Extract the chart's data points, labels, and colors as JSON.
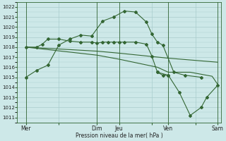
{
  "xlabel": "Pression niveau de la mer( hPa )",
  "background_color": "#cde8e8",
  "grid_color": "#a8cccc",
  "line_color": "#336633",
  "ylim": [
    1010.5,
    1022.5
  ],
  "yticks": [
    1011,
    1012,
    1013,
    1014,
    1015,
    1016,
    1017,
    1018,
    1019,
    1020,
    1021,
    1022
  ],
  "xlim": [
    -0.3,
    18.3
  ],
  "day_labels": [
    "Mer",
    "",
    "Dim",
    "Jeu",
    "",
    "Ven",
    "",
    "Sam"
  ],
  "day_positions": [
    0.5,
    3.5,
    7,
    9,
    12,
    13.5,
    16,
    18
  ],
  "vline_positions": [
    0.5,
    7,
    9,
    13.5,
    18
  ],
  "line1_x": [
    0.5,
    1.5,
    2.5,
    3.5,
    4.5,
    5.5,
    6.5,
    7.5,
    8.5,
    9.5,
    10.5,
    11.5,
    12.0,
    12.5,
    13.0,
    14.0,
    15.0,
    16.5
  ],
  "line1_y": [
    1015.0,
    1015.7,
    1016.2,
    1018.2,
    1018.8,
    1019.2,
    1019.1,
    1020.6,
    1021.0,
    1021.6,
    1021.5,
    1020.5,
    1019.3,
    1018.5,
    1018.2,
    1015.5,
    1015.2,
    1015.0
  ],
  "line2_x": [
    0.5,
    1.5,
    2.0,
    2.5,
    3.5,
    4.5,
    5.5,
    6.5,
    7.0,
    7.5,
    8.0,
    8.5,
    9.0,
    9.5,
    10.5,
    11.5,
    12.0,
    12.5,
    13.5
  ],
  "line2_y": [
    1018.0,
    1018.0,
    1018.3,
    1018.8,
    1018.8,
    1018.6,
    1018.5,
    1018.5,
    1018.4,
    1018.5,
    1018.5,
    1018.5,
    1018.5,
    1018.5,
    1018.5,
    1018.3,
    1017.1,
    1015.5,
    1015.2
  ],
  "line3_x": [
    0.5,
    7.0,
    9.0,
    13.5,
    18.0
  ],
  "line3_y": [
    1018.0,
    1017.6,
    1017.4,
    1016.9,
    1016.5
  ],
  "line4_x": [
    0.5,
    7.0,
    9.0,
    12.5,
    13.5,
    14.5,
    15.5,
    16.5,
    17.5,
    18.0
  ],
  "line4_y": [
    1018.0,
    1017.2,
    1016.8,
    1016.0,
    1015.5,
    1015.5,
    1015.5,
    1015.3,
    1015.1,
    1014.3
  ],
  "line5_x": [
    12.5,
    13.0,
    13.5,
    14.5,
    15.5,
    16.5,
    17.0,
    18.0
  ],
  "line5_y": [
    1015.5,
    1015.2,
    1015.2,
    1013.5,
    1011.2,
    1012.0,
    1013.0,
    1014.2
  ]
}
